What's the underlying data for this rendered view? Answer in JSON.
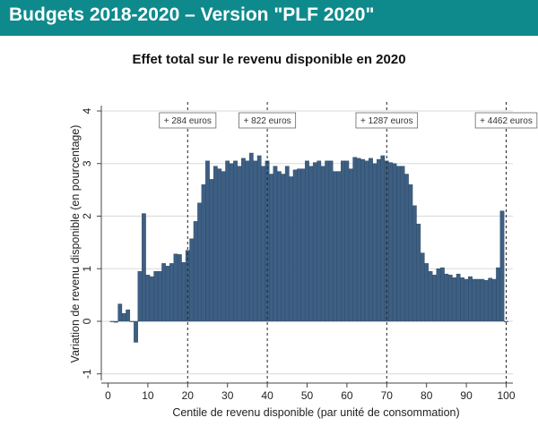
{
  "header": {
    "title": "Budgets 2018-2020 – Version \"PLF 2020\""
  },
  "colors": {
    "header_bg": "#0f8a8c",
    "bar": "#3d5f83",
    "bar_stroke": "#2b4662",
    "grid": "#d9d9d9"
  },
  "chart_data": {
    "type": "bar",
    "title": "Effet total sur le revenu disponible en 2020",
    "xlabel": "Centile de revenu disponible (par unité de consommation)",
    "ylabel": "Variation de revenu disponible (en pourcentage)",
    "xlim": [
      0,
      100
    ],
    "ylim": [
      -1,
      4
    ],
    "xticks": [
      "0",
      "10",
      "20",
      "30",
      "40",
      "50",
      "60",
      "70",
      "80",
      "90",
      "100"
    ],
    "yticks": [
      "-1",
      "0",
      "1",
      "2",
      "3",
      "4"
    ],
    "grid": true,
    "x": [
      1,
      2,
      3,
      4,
      5,
      6,
      7,
      8,
      9,
      10,
      11,
      12,
      13,
      14,
      15,
      16,
      17,
      18,
      19,
      20,
      21,
      22,
      23,
      24,
      25,
      26,
      27,
      28,
      29,
      30,
      31,
      32,
      33,
      34,
      35,
      36,
      37,
      38,
      39,
      40,
      41,
      42,
      43,
      44,
      45,
      46,
      47,
      48,
      49,
      50,
      51,
      52,
      53,
      54,
      55,
      56,
      57,
      58,
      59,
      60,
      61,
      62,
      63,
      64,
      65,
      66,
      67,
      68,
      69,
      70,
      71,
      72,
      73,
      74,
      75,
      76,
      77,
      78,
      79,
      80,
      81,
      82,
      83,
      84,
      85,
      86,
      87,
      88,
      89,
      90,
      91,
      92,
      93,
      94,
      95,
      96,
      97,
      98,
      99,
      100
    ],
    "values": [
      0.0,
      -0.02,
      0.33,
      0.15,
      0.22,
      0.0,
      -0.4,
      0.95,
      2.05,
      0.88,
      0.85,
      0.95,
      0.95,
      1.1,
      1.05,
      1.1,
      1.28,
      1.27,
      1.12,
      1.35,
      1.57,
      1.9,
      2.25,
      2.6,
      3.05,
      2.7,
      2.95,
      2.9,
      2.85,
      3.05,
      3.0,
      3.05,
      2.95,
      3.1,
      3.05,
      3.2,
      3.05,
      3.15,
      2.95,
      3.05,
      2.8,
      2.95,
      2.85,
      2.8,
      2.95,
      2.75,
      2.88,
      2.9,
      2.9,
      3.05,
      2.95,
      3.02,
      3.05,
      2.95,
      3.05,
      3.05,
      2.85,
      2.85,
      3.05,
      3.05,
      2.9,
      3.12,
      3.1,
      3.08,
      3.05,
      3.1,
      3.0,
      3.08,
      3.15,
      3.05,
      3.02,
      3.0,
      2.95,
      2.95,
      2.8,
      2.6,
      2.2,
      1.85,
      1.3,
      1.1,
      0.95,
      0.88,
      1.0,
      1.02,
      0.9,
      0.88,
      0.83,
      0.9,
      0.83,
      0.8,
      0.85,
      0.8,
      0.8,
      0.8,
      0.78,
      0.82,
      0.8,
      1.02,
      2.1,
      0.0
    ],
    "annotations": [
      {
        "x": 20,
        "label": "+ 284 euros"
      },
      {
        "x": 40,
        "label": "+ 822 euros"
      },
      {
        "x": 70,
        "label": "+ 1287 euros"
      },
      {
        "x": 100,
        "label": "+ 4462 euros"
      }
    ]
  }
}
